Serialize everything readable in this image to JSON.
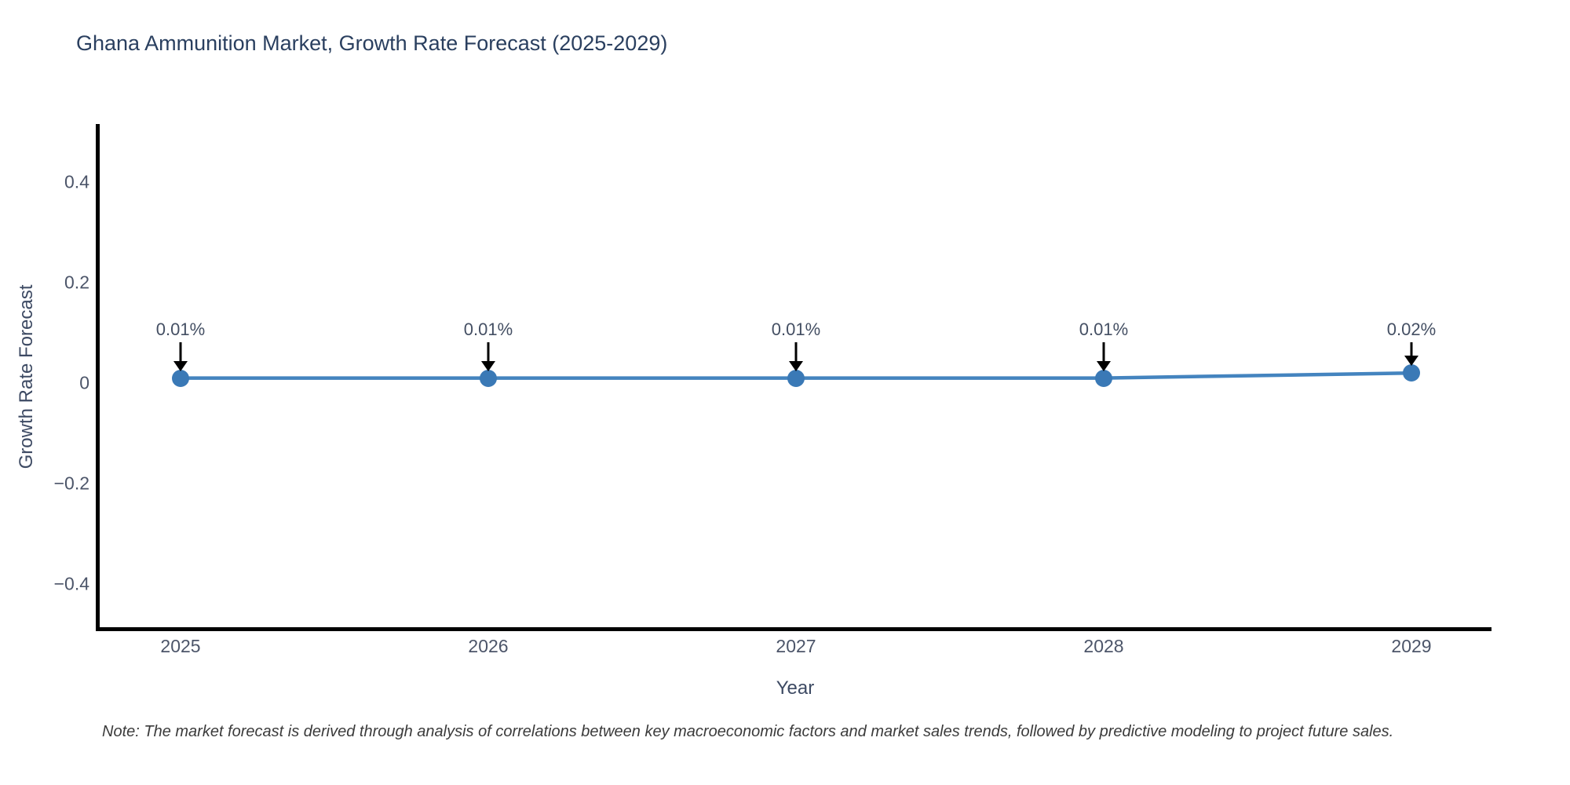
{
  "title": "Ghana Ammunition Market, Growth Rate Forecast (2025-2029)",
  "note": "Note: The market forecast is derived through analysis of correlations between key macroeconomic factors and market sales trends, followed by predictive modeling to project future sales.",
  "chart_data": {
    "type": "line",
    "title": "Ghana Ammunition Market, Growth Rate Forecast (2025-2029)",
    "xlabel": "Year",
    "ylabel": "Growth Rate Forecast",
    "x": [
      2025,
      2026,
      2027,
      2028,
      2029
    ],
    "values": [
      0.01,
      0.01,
      0.01,
      0.01,
      0.02
    ],
    "point_labels": [
      "0.01%",
      "0.01%",
      "0.01%",
      "0.01%",
      "0.02%"
    ],
    "xtick_labels": [
      "2025",
      "2026",
      "2027",
      "2028",
      "2029"
    ],
    "ytick_values": [
      0.4,
      0.2,
      0,
      -0.2,
      -0.4
    ],
    "ytick_labels": [
      "0.4",
      "0.2",
      "0",
      "−0.2",
      "−0.4"
    ],
    "ylim": [
      -0.49,
      0.51
    ],
    "grid": false,
    "legend": "none",
    "annotation_style": "value label with downward arrow to point",
    "colors": {
      "line": "#4484bf",
      "marker": "#3a79b6",
      "axis_line": "#000000",
      "title_text": "#2a3f5f",
      "tick_text": "#4c5569",
      "annotation_text": "#444f63",
      "note_text": "#3b3b3b",
      "background": "#ffffff"
    }
  }
}
